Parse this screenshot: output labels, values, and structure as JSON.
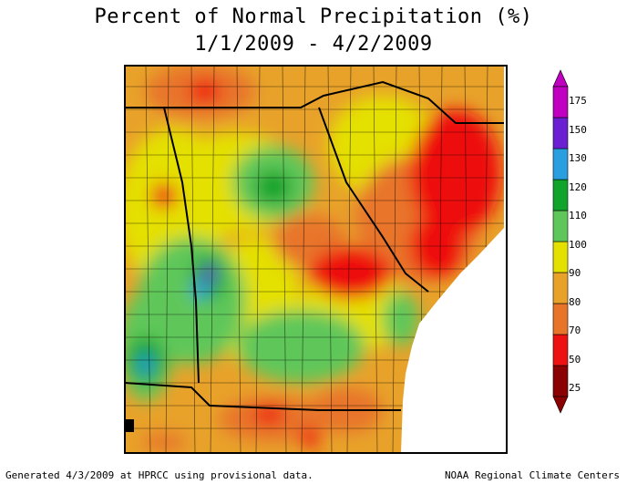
{
  "title": "Percent of Normal Precipitation (%)",
  "subtitle": "1/1/2009 - 4/2/2009",
  "footer_left": "Generated 4/3/2009 at HPRCC using provisional data.",
  "footer_right": "NOAA Regional Climate Centers",
  "legend": {
    "bins": [
      {
        "color": "#8b0000"
      },
      {
        "color": "#ee1111"
      },
      {
        "color": "#e8742a"
      },
      {
        "color": "#e8a22a"
      },
      {
        "color": "#e4e000"
      },
      {
        "color": "#5fc75a"
      },
      {
        "color": "#11a32a"
      },
      {
        "color": "#2a9fe0"
      },
      {
        "color": "#6a1fd2"
      },
      {
        "color": "#c000c0"
      }
    ],
    "ticks": [
      "175",
      "150",
      "130",
      "120",
      "110",
      "100",
      "90",
      "80",
      "70",
      "50",
      "25"
    ]
  },
  "map": {
    "colors": {
      "frame": "#000000",
      "boundary": "#000000",
      "ocean": "#ffffff"
    }
  }
}
